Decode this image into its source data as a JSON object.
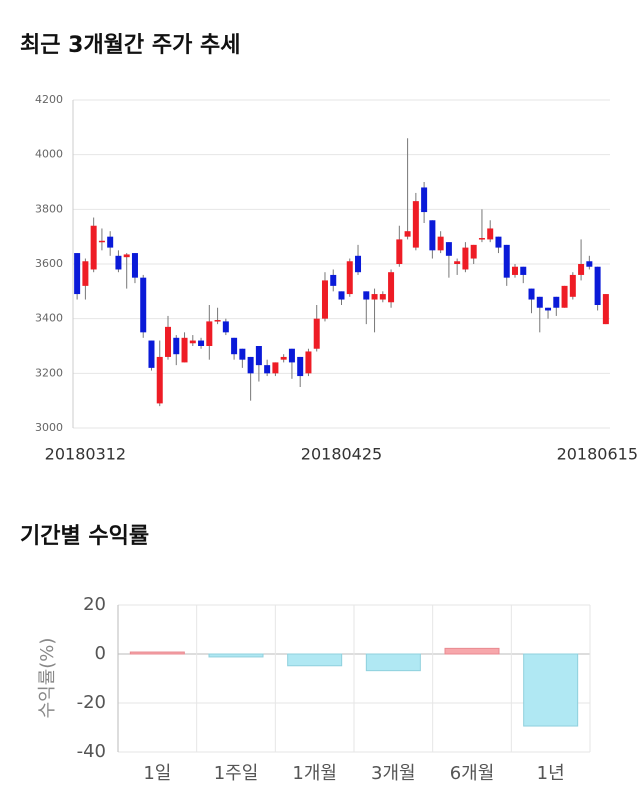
{
  "chart_data": [
    {
      "type": "candlestick",
      "title": "최근 3개월간 주가 추세",
      "categories": [
        null,
        "20180312",
        null,
        null,
        null,
        null,
        null,
        null,
        null,
        null,
        null,
        null,
        null,
        null,
        null,
        null,
        null,
        null,
        null,
        null,
        null,
        null,
        null,
        null,
        null,
        null,
        null,
        null,
        null,
        null,
        null,
        null,
        "20180425",
        null,
        null,
        null,
        null,
        null,
        null,
        null,
        null,
        null,
        null,
        null,
        null,
        null,
        null,
        null,
        null,
        null,
        null,
        null,
        null,
        null,
        null,
        null,
        null,
        null,
        null,
        null,
        null,
        null,
        null,
        null,
        "20180615"
      ],
      "open": [
        3640,
        3520,
        3580,
        3680,
        3700,
        3630,
        3625,
        3640,
        3550,
        3320,
        3090,
        3260,
        3330,
        3240,
        3310,
        3320,
        3300,
        3390,
        3390,
        3330,
        3290,
        3260,
        3300,
        3230,
        3200,
        3250,
        3290,
        3260,
        3200,
        3290,
        3400,
        3560,
        3500,
        3490,
        3630,
        3500,
        3470,
        3470,
        3460,
        3600,
        3700,
        3660,
        3880,
        3760,
        3650,
        3680,
        3600,
        3580,
        3620,
        3690,
        3690,
        3700,
        3670,
        3560,
        3590,
        3510,
        3480,
        3440,
        3480,
        3440,
        3480,
        3560,
        3610,
        3590,
        3380
      ],
      "high": [
        3640,
        3620,
        3770,
        3730,
        3720,
        3650,
        3640,
        3640,
        3560,
        3320,
        3320,
        3410,
        3340,
        3350,
        3340,
        3330,
        3450,
        3440,
        3400,
        3330,
        3290,
        3260,
        3300,
        3250,
        3240,
        3270,
        3290,
        3260,
        3290,
        3450,
        3570,
        3580,
        3500,
        3620,
        3670,
        3500,
        3510,
        3500,
        3580,
        3740,
        4060,
        3860,
        3900,
        3760,
        3720,
        3680,
        3620,
        3680,
        3670,
        3800,
        3760,
        3700,
        3670,
        3600,
        3590,
        3510,
        3480,
        3440,
        3480,
        3520,
        3570,
        3690,
        3630,
        3590,
        3490
      ],
      "low": [
        3470,
        3470,
        3570,
        3650,
        3630,
        3570,
        3510,
        3530,
        3330,
        3210,
        3080,
        3250,
        3230,
        3240,
        3300,
        3290,
        3250,
        3380,
        3340,
        3250,
        3220,
        3100,
        3170,
        3190,
        3190,
        3240,
        3180,
        3150,
        3190,
        3280,
        3390,
        3500,
        3450,
        3480,
        3560,
        3380,
        3350,
        3460,
        3440,
        3590,
        3690,
        3650,
        3750,
        3620,
        3640,
        3550,
        3560,
        3570,
        3600,
        3680,
        3680,
        3640,
        3520,
        3550,
        3530,
        3420,
        3350,
        3400,
        3410,
        3440,
        3470,
        3540,
        3580,
        3430,
        3380
      ],
      "close": [
        3490,
        3610,
        3740,
        3685,
        3660,
        3580,
        3635,
        3550,
        3350,
        3220,
        3260,
        3370,
        3270,
        3330,
        3320,
        3300,
        3390,
        3395,
        3350,
        3270,
        3250,
        3200,
        3230,
        3200,
        3240,
        3260,
        3240,
        3190,
        3280,
        3400,
        3540,
        3520,
        3470,
        3610,
        3570,
        3470,
        3490,
        3490,
        3570,
        3690,
        3720,
        3830,
        3790,
        3650,
        3700,
        3630,
        3610,
        3660,
        3670,
        3695,
        3730,
        3660,
        3550,
        3590,
        3560,
        3470,
        3440,
        3430,
        3440,
        3520,
        3560,
        3600,
        3590,
        3450,
        3490
      ],
      "up_color": "#ee1c25",
      "down_color": "#0a1ad8",
      "ylim": [
        3000,
        4200
      ],
      "yticks": [
        3000,
        3200,
        3400,
        3600,
        3800,
        4000,
        4200
      ],
      "grid": true
    },
    {
      "type": "bar",
      "title": "기간별 수익률",
      "ylabel": "수익률(%)",
      "categories": [
        "1일",
        "1주일",
        "1개월",
        "3개월",
        "6개월",
        "1년"
      ],
      "values": [
        0.8,
        -1.2,
        -4.8,
        -6.8,
        2.3,
        -29.4
      ],
      "positive_color": "#f7a7ab",
      "negative_color": "#b0e8f3",
      "ylim": [
        -40,
        20
      ],
      "yticks": [
        -40,
        -20,
        0,
        20
      ],
      "grid": true
    }
  ]
}
